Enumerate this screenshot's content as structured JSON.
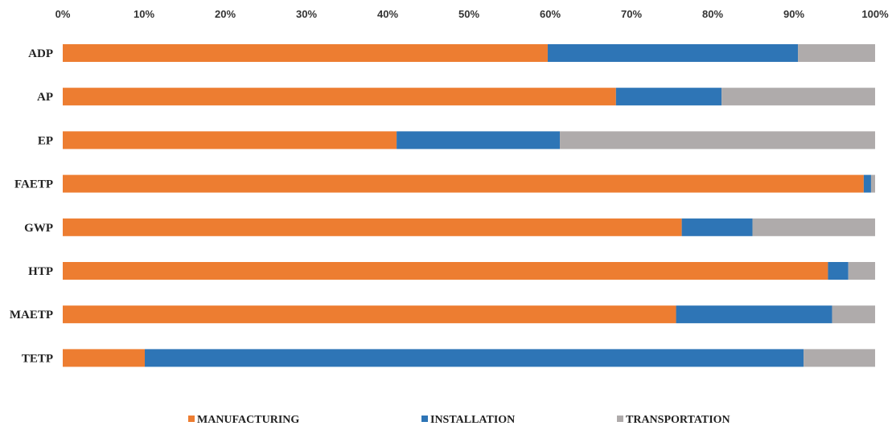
{
  "chart_data": {
    "type": "bar",
    "orientation": "horizontal",
    "stacked": "percent",
    "categories": [
      "ADP",
      "AP",
      "EP",
      "FAETP",
      "GWP",
      "HTP",
      "MAETP",
      "TETP"
    ],
    "series": [
      {
        "name": "MANUFACTURING",
        "color": "#ED7D31",
        "values": [
          59.7,
          68.1,
          41.1,
          98.6,
          76.2,
          94.2,
          75.5,
          10.1
        ]
      },
      {
        "name": "INSTALLATION",
        "color": "#2E75B6",
        "values": [
          30.8,
          13.0,
          20.1,
          0.9,
          8.7,
          2.5,
          19.2,
          81.1
        ]
      },
      {
        "name": "TRANSPORTATION",
        "color": "#AFABAB",
        "values": [
          9.5,
          18.9,
          38.8,
          0.5,
          15.1,
          3.3,
          5.3,
          8.8
        ]
      }
    ],
    "xlim": [
      0,
      100
    ],
    "x_ticks": [
      "0%",
      "10%",
      "20%",
      "30%",
      "40%",
      "50%",
      "60%",
      "70%",
      "80%",
      "90%",
      "100%"
    ],
    "x_axis_position": "top",
    "grid": false,
    "legend_position": "bottom"
  }
}
